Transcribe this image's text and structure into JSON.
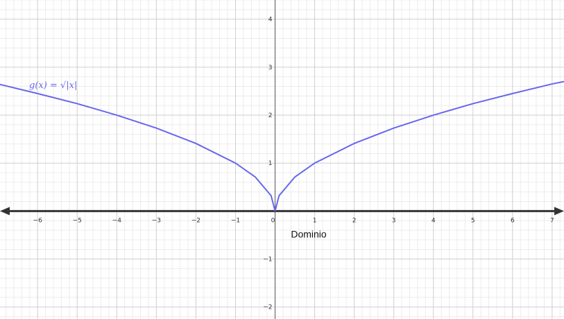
{
  "chart_data": {
    "type": "line",
    "title": "",
    "xlabel": "",
    "ylabel": "",
    "xlim": [
      -6.95,
      7.3
    ],
    "ylim": [
      -2.25,
      4.4
    ],
    "grid": true,
    "x_ticks": [
      -6,
      -5,
      -4,
      -3,
      -2,
      -1,
      0,
      1,
      2,
      3,
      4,
      5,
      6,
      7
    ],
    "y_ticks": [
      -2,
      -1,
      1,
      2,
      3,
      4
    ],
    "x_tick_labels": [
      "−6",
      "−5",
      "−4",
      "−3",
      "−2",
      "−1",
      "0",
      "1",
      "2",
      "3",
      "4",
      "5",
      "6",
      "7"
    ],
    "y_tick_labels": [
      "−2",
      "−1",
      "1",
      "2",
      "3",
      "4"
    ],
    "series": [
      {
        "name": "g(x) = √|x|",
        "color": "#6666ee",
        "x": [
          -7,
          -6,
          -5,
          -4,
          -3,
          -2,
          -1,
          -0.5,
          -0.1,
          0,
          0.1,
          0.5,
          1,
          2,
          3,
          4,
          5,
          6,
          7,
          7.3
        ],
        "y": [
          2.65,
          2.45,
          2.24,
          2.0,
          1.73,
          1.41,
          1.0,
          0.71,
          0.32,
          0.0,
          0.32,
          0.71,
          1.0,
          1.41,
          1.73,
          2.0,
          2.24,
          2.45,
          2.65,
          2.7
        ]
      }
    ],
    "annotations": [
      {
        "text": "Dominio",
        "x": 0.4,
        "y": -0.55
      }
    ]
  },
  "function_label": "g(x)  =  √|x|",
  "colors": {
    "curve": "#6666ee",
    "axis_arrow": "#333333",
    "grid_major": "#cfcfcf",
    "grid_minor": "#ececec"
  }
}
